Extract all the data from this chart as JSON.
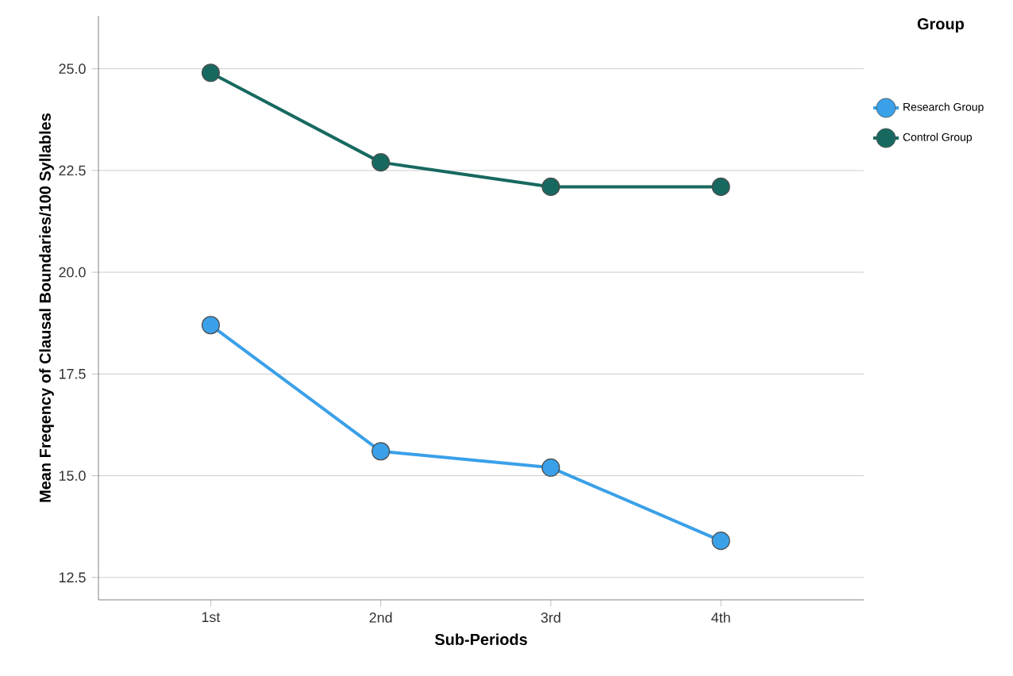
{
  "chart_data": {
    "type": "line",
    "xlabel": "Sub-Periods",
    "ylabel": "Mean Freqency of Clausal Boundaries/100 Syllables",
    "legend_title": "Group",
    "categories": [
      "1st",
      "2nd",
      "3rd",
      "4th"
    ],
    "series": [
      {
        "name": "Research Group",
        "color": "#3aa0e8",
        "values": [
          18.7,
          15.6,
          15.2,
          13.4
        ]
      },
      {
        "name": "Control Group",
        "color": "#17695f",
        "values": [
          24.9,
          22.7,
          22.1,
          22.1
        ]
      }
    ],
    "ylim": [
      11.95,
      26.3
    ],
    "yticks": [
      {
        "value": 12.5,
        "label": "12.5"
      },
      {
        "value": 15,
        "label": "15.0"
      },
      {
        "value": 17.5,
        "label": "17.5"
      },
      {
        "value": 20,
        "label": "20.0"
      },
      {
        "value": 22.5,
        "label": "22.5"
      },
      {
        "value": 25,
        "label": "25.0"
      }
    ],
    "grid": "y",
    "legend": "top right",
    "marker": "circle",
    "line_style": "solid"
  }
}
